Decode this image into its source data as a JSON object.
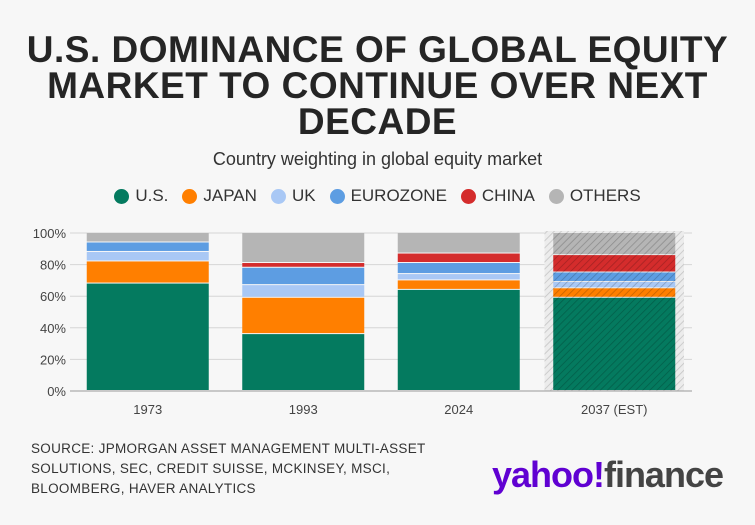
{
  "title": "U.S. DOMINANCE OF GLOBAL EQUITY MARKET TO CONTINUE OVER NEXT DECADE",
  "subtitle": "Country weighting in global equity market",
  "source": "SOURCE: JPMORGAN ASSET MANAGEMENT MULTI-ASSET SOLUTIONS, SEC, CREDIT SUISSE, MCKINSEY, MSCI, BLOOMBERG, HAVER ANALYTICS",
  "logo": {
    "part1": "yahoo!",
    "part2": "finance"
  },
  "chart_data": {
    "type": "bar",
    "stacked": true,
    "categories": [
      "1973",
      "1993",
      "2024",
      "2037 (EST)"
    ],
    "estimated_category": "2037 (EST)",
    "ylim": [
      0,
      100
    ],
    "yticks": [
      "0%",
      "20%",
      "40%",
      "60%",
      "80%",
      "100%"
    ],
    "legend_position": "top",
    "series": [
      {
        "name": "U.S.",
        "color": "#047a5f",
        "values": [
          68,
          36,
          64,
          59
        ]
      },
      {
        "name": "JAPAN",
        "color": "#ff7f00",
        "values": [
          14,
          23,
          6,
          6
        ]
      },
      {
        "name": "UK",
        "color": "#a9c8f5",
        "values": [
          6,
          8,
          4,
          4
        ]
      },
      {
        "name": "EUROZONE",
        "color": "#5d9de2",
        "values": [
          6,
          11,
          7,
          6
        ]
      },
      {
        "name": "CHINA",
        "color": "#d42c2c",
        "values": [
          0,
          3,
          6,
          11
        ]
      },
      {
        "name": "OTHERS",
        "color": "#b5b5b5",
        "values": [
          6,
          19,
          13,
          14
        ]
      }
    ]
  }
}
